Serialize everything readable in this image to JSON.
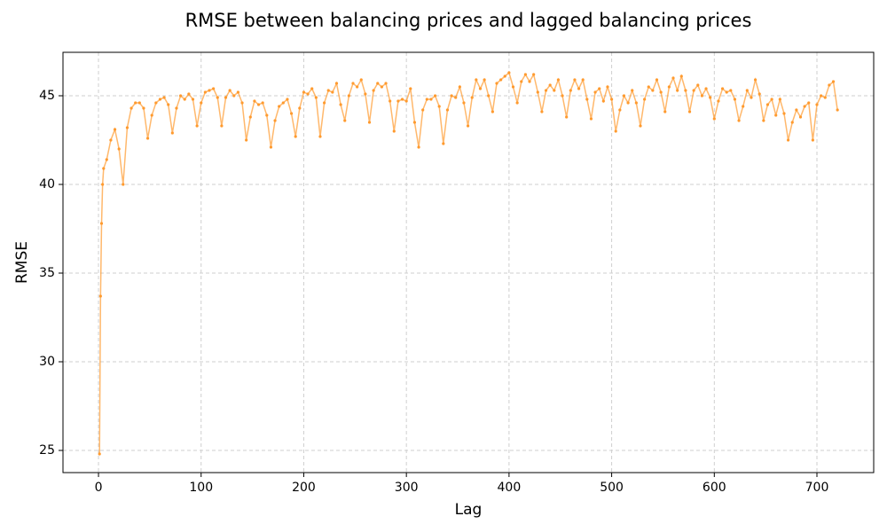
{
  "chart_data": {
    "type": "line",
    "title": "RMSE between balancing prices and lagged balancing prices",
    "x_label": "Lag",
    "y_label": "RMSE",
    "color": "#ff9a2e",
    "grid": true,
    "xlim": [
      -34.6,
      755.3
    ],
    "ylim": [
      23.75,
      47.45
    ],
    "xticks": [
      0,
      100,
      200,
      300,
      400,
      500,
      600,
      700
    ],
    "yticks": [
      25,
      30,
      35,
      40,
      45
    ],
    "x": [
      1,
      2,
      3,
      4,
      5,
      8,
      12,
      16,
      20,
      24,
      28,
      32,
      36,
      40,
      44,
      48,
      52,
      56,
      60,
      64,
      68,
      72,
      76,
      80,
      84,
      88,
      92,
      96,
      100,
      104,
      108,
      112,
      116,
      120,
      124,
      128,
      132,
      136,
      140,
      144,
      148,
      152,
      156,
      160,
      164,
      168,
      172,
      176,
      180,
      184,
      188,
      192,
      196,
      200,
      204,
      208,
      212,
      216,
      220,
      224,
      228,
      232,
      236,
      240,
      244,
      248,
      252,
      256,
      260,
      264,
      268,
      272,
      276,
      280,
      284,
      288,
      292,
      296,
      300,
      304,
      308,
      312,
      316,
      320,
      324,
      328,
      332,
      336,
      340,
      344,
      348,
      352,
      356,
      360,
      364,
      368,
      372,
      376,
      380,
      384,
      388,
      392,
      396,
      400,
      404,
      408,
      412,
      416,
      420,
      424,
      428,
      432,
      436,
      440,
      444,
      448,
      452,
      456,
      460,
      464,
      468,
      472,
      476,
      480,
      484,
      488,
      492,
      496,
      500,
      504,
      508,
      512,
      516,
      520,
      524,
      528,
      532,
      536,
      540,
      544,
      548,
      552,
      556,
      560,
      564,
      568,
      572,
      576,
      580,
      584,
      588,
      592,
      596,
      600,
      604,
      608,
      612,
      616,
      620,
      624,
      628,
      632,
      636,
      640,
      644,
      648,
      652,
      656,
      660,
      664,
      668,
      672,
      676,
      680,
      684,
      688,
      692,
      696,
      700,
      704,
      708,
      712,
      716,
      720
    ],
    "values": [
      24.8,
      33.7,
      37.8,
      40.0,
      40.9,
      41.4,
      42.5,
      43.1,
      42.0,
      40.0,
      43.2,
      44.3,
      44.6,
      44.6,
      44.3,
      42.6,
      43.9,
      44.6,
      44.8,
      44.9,
      44.5,
      42.9,
      44.3,
      45.0,
      44.8,
      45.1,
      44.8,
      43.3,
      44.6,
      45.2,
      45.3,
      45.4,
      44.9,
      43.3,
      44.9,
      45.3,
      45.0,
      45.2,
      44.6,
      42.5,
      43.8,
      44.7,
      44.5,
      44.6,
      43.9,
      42.1,
      43.6,
      44.4,
      44.6,
      44.8,
      44.0,
      42.7,
      44.3,
      45.2,
      45.1,
      45.4,
      44.9,
      42.7,
      44.6,
      45.3,
      45.2,
      45.7,
      44.5,
      43.6,
      45.0,
      45.7,
      45.5,
      45.9,
      45.1,
      43.5,
      45.3,
      45.7,
      45.5,
      45.7,
      44.7,
      43.0,
      44.7,
      44.8,
      44.7,
      45.4,
      43.5,
      42.1,
      44.2,
      44.8,
      44.8,
      45.0,
      44.4,
      42.3,
      44.2,
      45.0,
      44.9,
      45.5,
      44.6,
      43.3,
      44.9,
      45.9,
      45.4,
      45.9,
      45.0,
      44.1,
      45.7,
      45.9,
      46.1,
      46.3,
      45.5,
      44.6,
      45.8,
      46.2,
      45.8,
      46.2,
      45.2,
      44.1,
      45.3,
      45.6,
      45.3,
      45.9,
      45.0,
      43.8,
      45.3,
      45.9,
      45.4,
      45.9,
      44.8,
      43.7,
      45.2,
      45.4,
      44.7,
      45.5,
      44.8,
      43.0,
      44.2,
      45.0,
      44.6,
      45.3,
      44.6,
      43.3,
      44.8,
      45.5,
      45.3,
      45.9,
      45.2,
      44.1,
      45.5,
      46.0,
      45.3,
      46.1,
      45.3,
      44.1,
      45.3,
      45.6,
      45.0,
      45.4,
      44.9,
      43.7,
      44.7,
      45.4,
      45.2,
      45.3,
      44.8,
      43.6,
      44.4,
      45.3,
      44.9,
      45.9,
      45.1,
      43.6,
      44.5,
      44.8,
      43.9,
      44.8,
      44.0,
      42.5,
      43.5,
      44.2,
      43.8,
      44.4,
      44.6,
      42.5,
      44.5,
      45.0,
      44.9,
      45.6,
      45.8,
      44.2
    ]
  }
}
